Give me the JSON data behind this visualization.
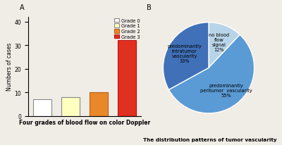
{
  "bar_values": [
    7,
    8,
    10,
    32
  ],
  "bar_colors": [
    "#ffffff",
    "#ffffc0",
    "#e8882a",
    "#e03020"
  ],
  "bar_edge_colors": [
    "#888888",
    "#888888",
    "#b86010",
    "#c01010"
  ],
  "bar_labels": [
    "Grade 0",
    "Grade 1",
    "Grade 2",
    "Grade 3"
  ],
  "bar_ylabel": "Numbers of cases",
  "bar_xlabel": "Four grades of blood flow on color Doppler",
  "bar_yticks": [
    0,
    10,
    20,
    30,
    40
  ],
  "bar_ylim": [
    0,
    42
  ],
  "pie_values": [
    12,
    55,
    33
  ],
  "pie_colors": [
    "#b8d4e8",
    "#5b9bd5",
    "#4070b8"
  ],
  "pie_labels_outside": [
    "no blood\nflow\nsignal\n12%",
    "predominantly\nperitumor  vascularity\n55%",
    "predominantly\nintratumor\nvascularity\n33%"
  ],
  "pie_startangle": 90,
  "pie_xlabel": "The distribution patterns of tumor vascularity",
  "label_A": "A",
  "label_B": "B",
  "bg_color": "#f0ece6"
}
